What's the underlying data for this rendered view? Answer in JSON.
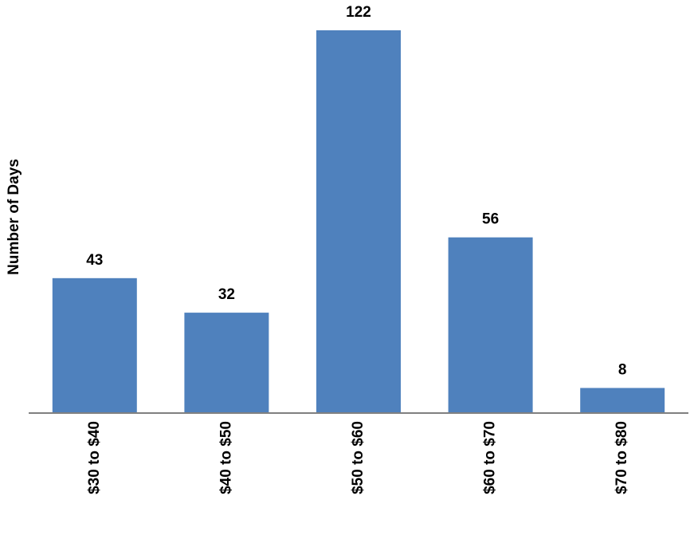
{
  "chart_data": {
    "type": "bar",
    "y_label": "Number of Days",
    "categories": [
      "$30 to $40",
      "$40 to $50",
      "$50 to $60",
      "$60 to $70",
      "$70 to $80"
    ],
    "values": [
      43,
      32,
      122,
      56,
      8
    ],
    "color": "#4f81bd"
  }
}
